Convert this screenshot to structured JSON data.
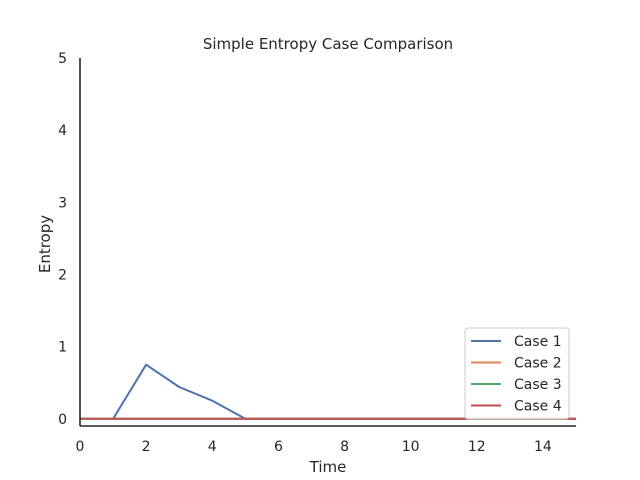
{
  "chart_data": {
    "type": "line",
    "title": "Simple Entropy Case Comparison",
    "xlabel": "Time",
    "ylabel": "Entropy",
    "xlim": [
      0,
      15
    ],
    "ylim": [
      -0.1,
      5
    ],
    "xticks": [
      0,
      2,
      4,
      6,
      8,
      10,
      12,
      14
    ],
    "yticks": [
      0,
      1,
      2,
      3,
      4,
      5
    ],
    "legend_position": "bottom-right",
    "series": [
      {
        "name": "Case 1",
        "color": "#4c72b0",
        "x": [
          1,
          2,
          3,
          4,
          5,
          6,
          7,
          8,
          9,
          10,
          11,
          12,
          13,
          14,
          15
        ],
        "values": [
          0,
          0.75,
          0.44,
          0.25,
          0,
          0,
          0,
          0,
          0,
          0,
          0,
          0,
          0,
          0,
          0
        ]
      },
      {
        "name": "Case 2",
        "color": "#dd8452",
        "x": [
          0,
          15
        ],
        "values": [
          0,
          0
        ]
      },
      {
        "name": "Case 3",
        "color": "#55a868",
        "x": [
          0,
          15
        ],
        "values": [
          0,
          0
        ]
      },
      {
        "name": "Case 4",
        "color": "#c44e52",
        "x": [
          0,
          15
        ],
        "values": [
          0,
          0
        ]
      }
    ]
  }
}
